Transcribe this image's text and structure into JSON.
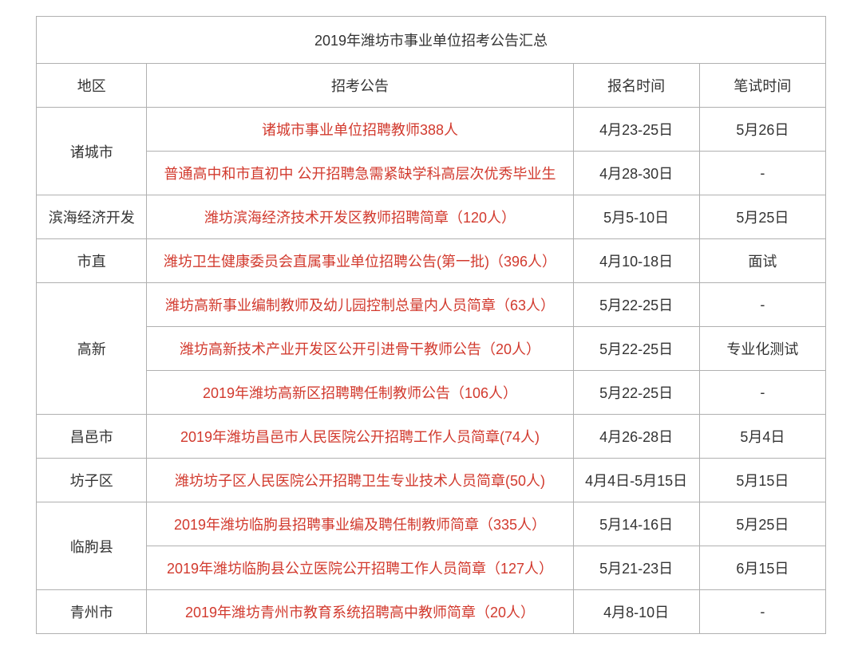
{
  "title": "2019年潍坊市事业单位招考公告汇总",
  "headers": {
    "region": "地区",
    "announcement": "招考公告",
    "signup_time": "报名时间",
    "exam_time": "笔试时间"
  },
  "colors": {
    "link": "#d23a2e",
    "text": "#333333",
    "border": "#b0b0b0",
    "background": "#ffffff"
  },
  "rows": [
    {
      "region": "诸城市",
      "region_rowspan": 2,
      "announcement": "诸城市事业单位招聘教师388人",
      "signup": "4月23-25日",
      "exam": "5月26日"
    },
    {
      "announcement": "普通高中和市直初中 公开招聘急需紧缺学科高层次优秀毕业生",
      "signup": "4月28-30日",
      "exam": "-"
    },
    {
      "region": "滨海经济开发",
      "region_rowspan": 1,
      "announcement": "潍坊滨海经济技术开发区教师招聘简章（120人）",
      "signup": "5月5-10日",
      "exam": "5月25日"
    },
    {
      "region": "市直",
      "region_rowspan": 1,
      "announcement": "潍坊卫生健康委员会直属事业单位招聘公告(第一批)（396人）",
      "signup": "4月10-18日",
      "exam": "面试"
    },
    {
      "region": "高新",
      "region_rowspan": 3,
      "announcement": "潍坊高新事业编制教师及幼儿园控制总量内人员简章（63人）",
      "signup": "5月22-25日",
      "exam": "-"
    },
    {
      "announcement": "潍坊高新技术产业开发区公开引进骨干教师公告（20人）",
      "signup": "5月22-25日",
      "exam": "专业化测试"
    },
    {
      "announcement": "2019年潍坊高新区招聘聘任制教师公告（106人）",
      "signup": "5月22-25日",
      "exam": "-"
    },
    {
      "region": "昌邑市",
      "region_rowspan": 1,
      "announcement": "2019年潍坊昌邑市人民医院公开招聘工作人员简章(74人)",
      "signup": "4月26-28日",
      "exam": "5月4日"
    },
    {
      "region": "坊子区",
      "region_rowspan": 1,
      "announcement": "潍坊坊子区人民医院公开招聘卫生专业技术人员简章(50人)",
      "signup": "4月4日-5月15日",
      "exam": "5月15日"
    },
    {
      "region": "临朐县",
      "region_rowspan": 2,
      "announcement": "2019年潍坊临朐县招聘事业编及聘任制教师简章（335人）",
      "signup": "5月14-16日",
      "exam": "5月25日"
    },
    {
      "announcement": "2019年潍坊临朐县公立医院公开招聘工作人员简章（127人）",
      "signup": "5月21-23日",
      "exam": "6月15日"
    },
    {
      "region": "青州市",
      "region_rowspan": 1,
      "announcement": "2019年潍坊青州市教育系统招聘高中教师简章（20人）",
      "signup": "4月8-10日",
      "exam": "-"
    }
  ]
}
